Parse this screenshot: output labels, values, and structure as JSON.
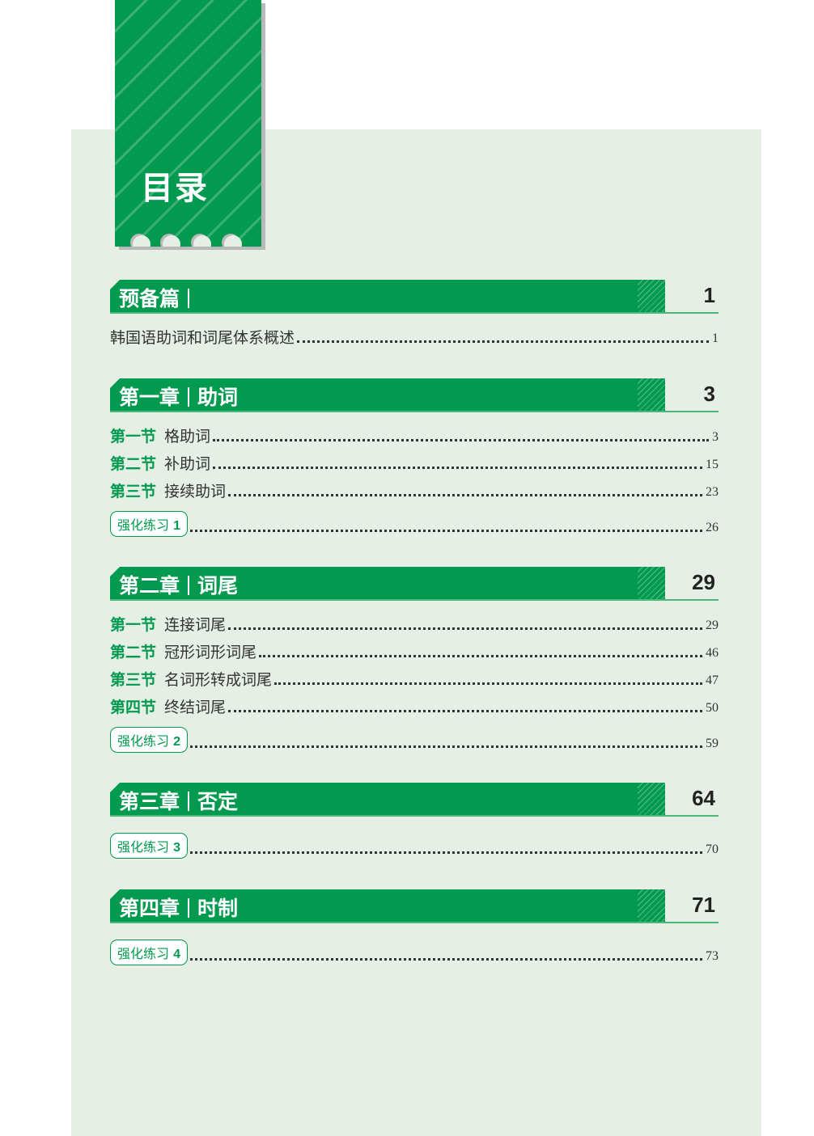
{
  "title": "目录",
  "colors": {
    "accent": "#029a4f",
    "panel": "#e6efe6"
  },
  "sections": [
    {
      "title": "预备篇",
      "subtitle": "",
      "page": "1",
      "entries": [
        {
          "sec": "",
          "title": "韩国语助词和词尾体系概述",
          "page": "1"
        }
      ],
      "practice": null
    },
    {
      "title": "第一章",
      "subtitle": "助词",
      "page": "3",
      "entries": [
        {
          "sec": "第一节",
          "title": "格助词",
          "page": "3"
        },
        {
          "sec": "第二节",
          "title": "补助词",
          "page": "15"
        },
        {
          "sec": "第三节",
          "title": "接续助词",
          "page": "23"
        }
      ],
      "practice": {
        "label": "强化练习",
        "num": "1",
        "page": "26"
      }
    },
    {
      "title": "第二章",
      "subtitle": "词尾",
      "page": "29",
      "entries": [
        {
          "sec": "第一节",
          "title": "连接词尾",
          "page": "29"
        },
        {
          "sec": "第二节",
          "title": "冠形词形词尾",
          "page": "46"
        },
        {
          "sec": "第三节",
          "title": "名词形转成词尾",
          "page": "47"
        },
        {
          "sec": "第四节",
          "title": "终结词尾",
          "page": "50"
        }
      ],
      "practice": {
        "label": "强化练习",
        "num": "2",
        "page": "59"
      }
    },
    {
      "title": "第三章",
      "subtitle": "否定",
      "page": "64",
      "entries": [],
      "practice": {
        "label": "强化练习",
        "num": "3",
        "page": "70"
      }
    },
    {
      "title": "第四章",
      "subtitle": "时制",
      "page": "71",
      "entries": [],
      "practice": {
        "label": "强化练习",
        "num": "4",
        "page": "73"
      }
    }
  ]
}
